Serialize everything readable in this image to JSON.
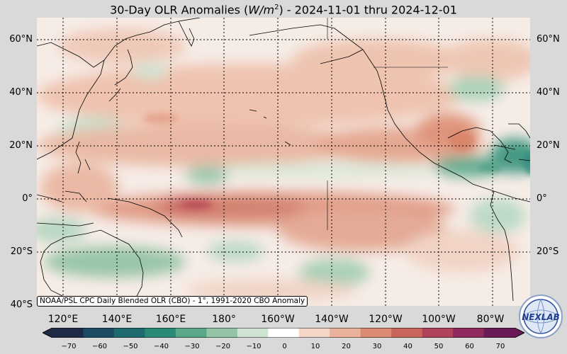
{
  "title": {
    "prefix": "30-Day OLR Anomalies (",
    "unit_base": "W/m",
    "unit_exp": "2",
    "suffix": ") - 2024-11-01 thru 2024-12-01"
  },
  "credit": "NOAA/PSL CPC Daily Blended OLR (CBO) - 1°, 1991-2020 CBO Anomaly",
  "latitude_labels": [
    "60°N",
    "40°N",
    "20°N",
    "0°",
    "20°S",
    "40°S"
  ],
  "longitude_labels": [
    "120°E",
    "140°E",
    "160°E",
    "180°",
    "160°W",
    "140°W",
    "120°W",
    "100°W",
    "80°W"
  ],
  "colorbar": {
    "ticks": [
      "−70",
      "−60",
      "−50",
      "−40",
      "−30",
      "−20",
      "−10",
      "0",
      "10",
      "20",
      "30",
      "40",
      "50",
      "60",
      "70"
    ],
    "colors": [
      "#1d2b48",
      "#1d4b63",
      "#1d6b6f",
      "#2a8a78",
      "#5aa88a",
      "#94c4a5",
      "#cfe3d2",
      "#ffffff",
      "#f5d6c6",
      "#eab29a",
      "#dc8a72",
      "#c9665c",
      "#b0435a",
      "#8e2a5c",
      "#6a1a56"
    ]
  },
  "logo": {
    "text": "NEXLAB",
    "icon": "nexlab-globe-logo"
  }
}
